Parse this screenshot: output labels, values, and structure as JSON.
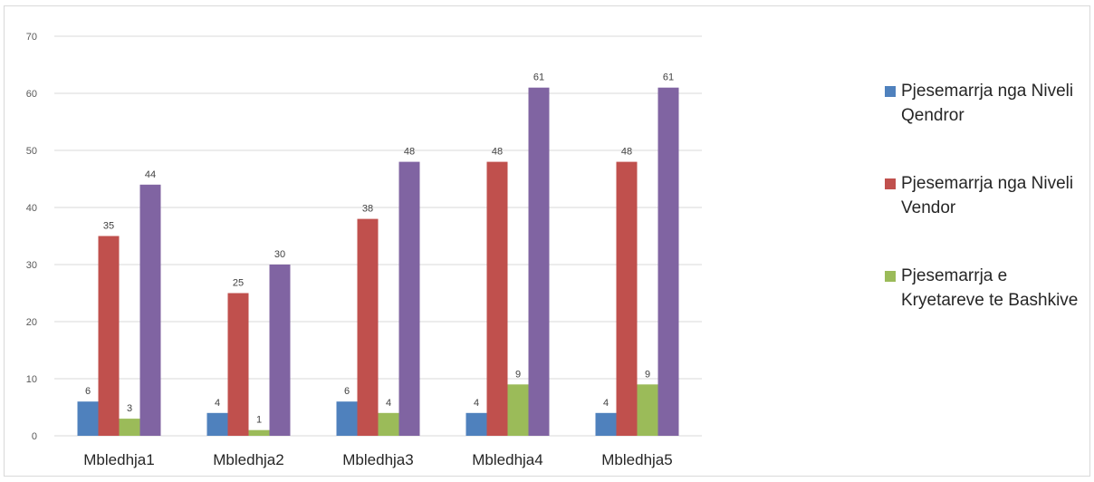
{
  "caption_fragment": "",
  "chart_data": {
    "type": "bar",
    "categories": [
      "Mbledhja1",
      "Mbledhja2",
      "Mbledhja3",
      "Mbledhja4",
      "Mbledhja5"
    ],
    "series": [
      {
        "name": "Pjesemarrja nga Niveli Qendror",
        "color": "#4f81bd",
        "values": [
          6,
          4,
          6,
          4,
          4
        ]
      },
      {
        "name": "Pjesemarrja nga Niveli Vendor",
        "color": "#c0504d",
        "values": [
          35,
          25,
          38,
          48,
          48
        ]
      },
      {
        "name": "Pjesemarrja e Kryetareve te Bashkive",
        "color": "#9bbb59",
        "values": [
          3,
          1,
          4,
          9,
          9
        ]
      },
      {
        "name": "",
        "color": "#8064a2",
        "values": [
          44,
          30,
          48,
          61,
          61
        ]
      }
    ],
    "ylim": [
      0,
      70
    ],
    "yticks": [
      0,
      10,
      20,
      30,
      40,
      50,
      60,
      70
    ],
    "grid": true,
    "legend_position": "right",
    "data_labels": true
  }
}
